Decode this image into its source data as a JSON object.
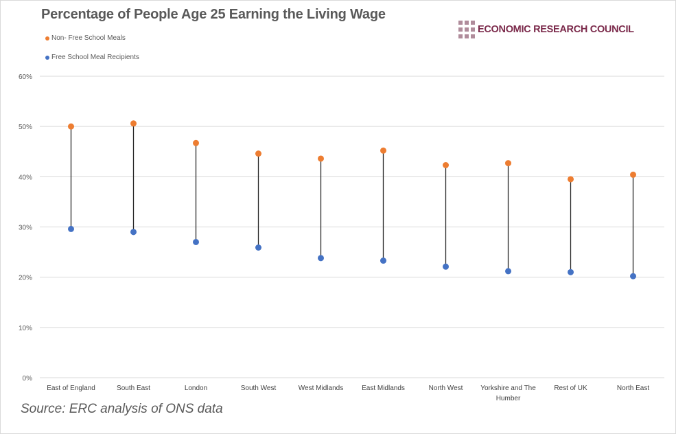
{
  "chart_data": {
    "type": "scatter",
    "subtype": "dumbbell",
    "title": "Percentage of People Age 25 Earning the Living Wage",
    "categories": [
      "East of England",
      "South East",
      "London",
      "South West",
      "West Midlands",
      "East Midlands",
      "North West",
      "Yorkshire and The Humber",
      "Rest of UK",
      "North East"
    ],
    "category_lines": [
      [
        "East of England"
      ],
      [
        "South East"
      ],
      [
        "London"
      ],
      [
        "South West"
      ],
      [
        "West Midlands"
      ],
      [
        "East Midlands"
      ],
      [
        "North West"
      ],
      [
        "Yorkshire and The",
        "Humber"
      ],
      [
        "Rest of UK"
      ],
      [
        "North East"
      ]
    ],
    "series": [
      {
        "name": "Non- Free School Meals",
        "color": "#ed7d31",
        "values": [
          50.0,
          50.6,
          46.7,
          44.6,
          43.6,
          45.2,
          42.3,
          42.7,
          39.5,
          40.4
        ]
      },
      {
        "name": "Free School Meal Recipients",
        "color": "#4472c4",
        "values": [
          29.6,
          29.0,
          27.0,
          25.9,
          23.8,
          23.3,
          22.1,
          21.2,
          21.0,
          20.2
        ]
      }
    ],
    "ylim": [
      0,
      60
    ],
    "yticks": [
      0,
      10,
      20,
      30,
      40,
      50,
      60
    ],
    "ytick_labels": [
      "0%",
      "10%",
      "20%",
      "30%",
      "40%",
      "50%",
      "60%"
    ],
    "xlabel": "",
    "ylabel": "",
    "grid": true,
    "legend_position": "top-left"
  },
  "logo_text": "ECONOMIC RESEARCH COUNCIL",
  "source": "Source: ERC analysis of ONS data"
}
